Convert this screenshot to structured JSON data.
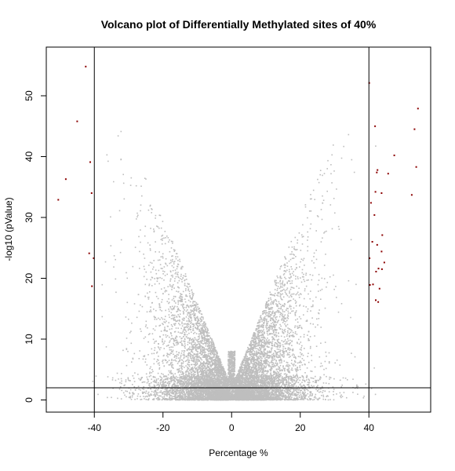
{
  "chart_data": {
    "type": "scatter",
    "title": "Volcano plot of Differentially Methylated sites of 40%",
    "xlabel": "Percentage %",
    "ylabel": "-log10 (pValue)",
    "xlim": [
      -54,
      58
    ],
    "ylim": [
      -2,
      58
    ],
    "x_ticks": [
      -40,
      -20,
      0,
      20,
      40
    ],
    "y_ticks": [
      0,
      10,
      20,
      30,
      40,
      50
    ],
    "reference_lines": {
      "vertical": [
        -40,
        40
      ],
      "horizontal": [
        2
      ]
    },
    "grid": false,
    "legend": "none",
    "colors": {
      "background_points": "#bebebe",
      "significant_points": "#8b0000",
      "lines": "#000000"
    },
    "background_cloud": {
      "description_shape": "V",
      "approx_points": 9000,
      "x_range": [
        -45,
        45
      ],
      "y_max": 46
    },
    "significant_points_left": [
      {
        "x": -42.5,
        "y": 54.8
      },
      {
        "x": -45.0,
        "y": 45.8
      },
      {
        "x": -41.2,
        "y": 39.1
      },
      {
        "x": -48.3,
        "y": 36.3
      },
      {
        "x": -50.5,
        "y": 32.9
      },
      {
        "x": -40.8,
        "y": 34.0
      },
      {
        "x": -41.5,
        "y": 24.1
      },
      {
        "x": -40.2,
        "y": 23.3
      },
      {
        "x": -40.7,
        "y": 18.7
      }
    ],
    "significant_points_right": [
      {
        "x": 54.3,
        "y": 47.9
      },
      {
        "x": 40.1,
        "y": 52.1
      },
      {
        "x": 41.8,
        "y": 45.0
      },
      {
        "x": 53.3,
        "y": 44.5
      },
      {
        "x": 47.4,
        "y": 40.2
      },
      {
        "x": 53.8,
        "y": 38.3
      },
      {
        "x": 42.5,
        "y": 37.8
      },
      {
        "x": 42.3,
        "y": 37.4
      },
      {
        "x": 45.6,
        "y": 37.2
      },
      {
        "x": 43.7,
        "y": 34.0
      },
      {
        "x": 52.5,
        "y": 33.7
      },
      {
        "x": 41.9,
        "y": 34.2
      },
      {
        "x": 40.6,
        "y": 32.4
      },
      {
        "x": 41.6,
        "y": 30.4
      },
      {
        "x": 43.9,
        "y": 27.1
      },
      {
        "x": 41.0,
        "y": 26.0
      },
      {
        "x": 42.4,
        "y": 25.5
      },
      {
        "x": 43.7,
        "y": 24.4
      },
      {
        "x": 40.2,
        "y": 23.3
      },
      {
        "x": 44.5,
        "y": 22.6
      },
      {
        "x": 42.8,
        "y": 21.6
      },
      {
        "x": 42.1,
        "y": 21.1
      },
      {
        "x": 43.8,
        "y": 21.5
      },
      {
        "x": 41.2,
        "y": 19.0
      },
      {
        "x": 40.3,
        "y": 18.9
      },
      {
        "x": 43.1,
        "y": 18.3
      },
      {
        "x": 42.0,
        "y": 16.4
      },
      {
        "x": 42.7,
        "y": 16.1
      }
    ]
  }
}
